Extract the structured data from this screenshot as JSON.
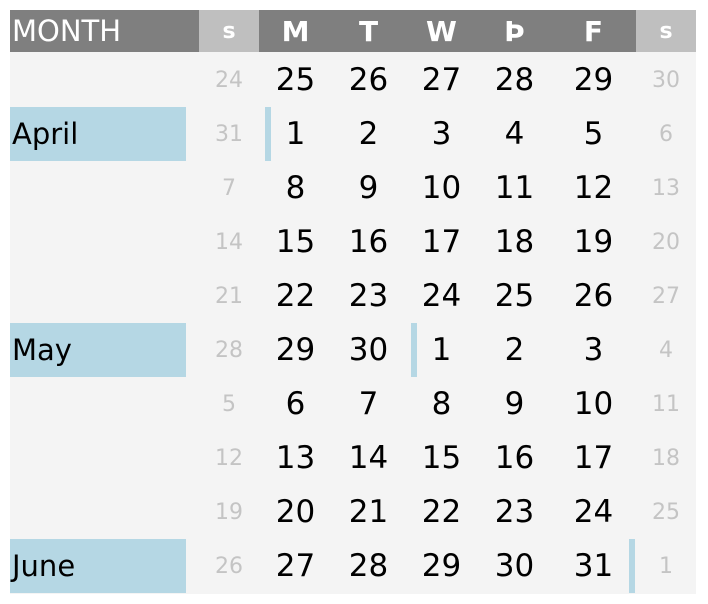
{
  "header": {
    "month_label": "MONTH",
    "days": [
      "s",
      "M",
      "T",
      "W",
      "Þ",
      "F",
      "s"
    ]
  },
  "weeks": [
    {
      "month": "",
      "days": [
        "24",
        "25",
        "26",
        "27",
        "28",
        "29",
        "30"
      ]
    },
    {
      "month": "April",
      "days": [
        "31",
        "1",
        "2",
        "3",
        "4",
        "5",
        "6"
      ]
    },
    {
      "month": "",
      "days": [
        "7",
        "8",
        "9",
        "10",
        "11",
        "12",
        "13"
      ]
    },
    {
      "month": "",
      "days": [
        "14",
        "15",
        "16",
        "17",
        "18",
        "19",
        "20"
      ]
    },
    {
      "month": "",
      "days": [
        "21",
        "22",
        "23",
        "24",
        "25",
        "26",
        "27"
      ]
    },
    {
      "month": "May",
      "days": [
        "28",
        "29",
        "30",
        "1",
        "2",
        "3",
        "4"
      ]
    },
    {
      "month": "",
      "days": [
        "5",
        "6",
        "7",
        "8",
        "9",
        "10",
        "11"
      ]
    },
    {
      "month": "",
      "days": [
        "12",
        "13",
        "14",
        "15",
        "16",
        "17",
        "18"
      ]
    },
    {
      "month": "",
      "days": [
        "19",
        "20",
        "21",
        "22",
        "23",
        "24",
        "25"
      ]
    },
    {
      "month": "June",
      "days": [
        "26",
        "27",
        "28",
        "29",
        "30",
        "31",
        "1"
      ]
    }
  ],
  "colors": {
    "header_dark": "#7f7f7f",
    "header_weekend": "#bfbfbf",
    "month_highlight": "#b5d7e4",
    "background": "#f4f4f4",
    "weekend_text": "#c4c4c4"
  }
}
